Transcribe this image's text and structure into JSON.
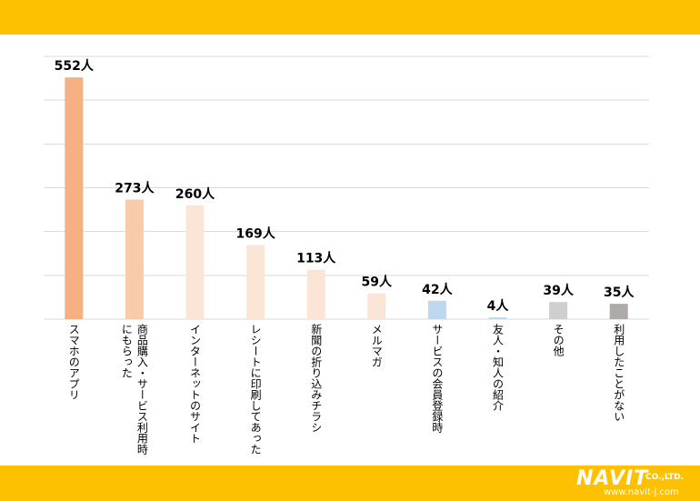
{
  "chart_data": {
    "type": "bar",
    "unit": "人",
    "ylim": [
      0,
      600
    ],
    "grid": true,
    "categories": [
      "スマホのアプリ",
      "商品購入・サービス利用時にもらった",
      "インターネットのサイト",
      "レシートに印刷してあった",
      "新聞の折り込みチラシ",
      "メルマガ",
      "サービスの会員登録時",
      "友人・知人の紹介",
      "その他",
      "利用したことがない"
    ],
    "label_lines": [
      [
        "スマホのアプリ"
      ],
      [
        "商品購入・サービス利用時",
        "にもらった"
      ],
      [
        "インターネットのサイト"
      ],
      [
        "レシートに印刷してあった"
      ],
      [
        "新聞の折り込みチラシ"
      ],
      [
        "メルマガ"
      ],
      [
        "サービスの会員登録時"
      ],
      [
        "友人・知人の紹介"
      ],
      [
        "その他"
      ],
      [
        "利用したことがない"
      ]
    ],
    "values": [
      552,
      273,
      260,
      169,
      113,
      59,
      42,
      4,
      39,
      35
    ],
    "value_labels": [
      "552人",
      "273人",
      "260人",
      "169人",
      "113人",
      "59人",
      "42人",
      "4人",
      "39人",
      "35人"
    ],
    "colors": [
      "#f4b183",
      "#f8cbad",
      "#fbe5d6",
      "#fbe5d6",
      "#fbe5d6",
      "#fbe5d6",
      "#bdd7ee",
      "#bdd7ee",
      "#d0cece",
      "#aeaaaa"
    ]
  },
  "footer": {
    "logo_main": "NAVIT",
    "logo_co": "CO.,LTD.",
    "logo_url": "www.navit-j.com"
  }
}
